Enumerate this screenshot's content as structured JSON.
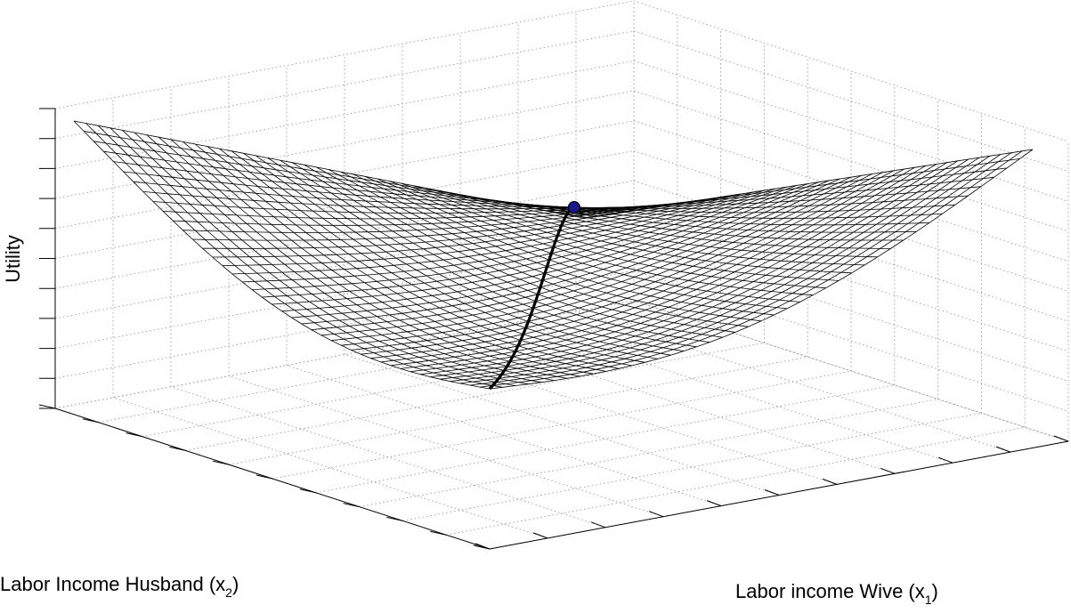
{
  "chart_data": {
    "type": "surface",
    "title": "",
    "zlabel": "Utility",
    "x2label": {
      "text": "Labor Income Husband (x",
      "sub": "2",
      "close": ")"
    },
    "x1label": {
      "text": "Labor income Wive (x",
      "sub": "1",
      "close": ")"
    },
    "grid": true,
    "tick_labels_shown": false,
    "surface_color": "#000000",
    "optimum_marker_color": "#1a1a8c",
    "series": [
      {
        "name": "",
        "kind": "mesh",
        "grid_size": 42
      },
      {
        "name": "",
        "kind": "optimal-path"
      },
      {
        "name": "",
        "kind": "optimum-point"
      }
    ]
  }
}
